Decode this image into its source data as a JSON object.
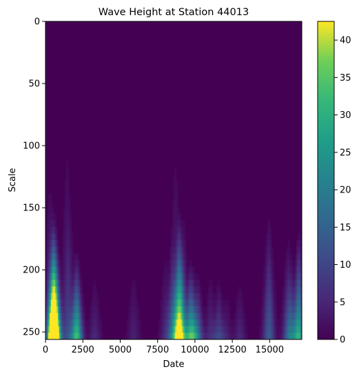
{
  "chart_data": {
    "type": "heatmap",
    "title": "Wave Height at Station 44013",
    "xlabel": "Date",
    "ylabel": "Scale",
    "colormap": "viridis",
    "xlim": [
      0,
      17150
    ],
    "ylim": [
      256,
      0
    ],
    "x_ticks": [
      0,
      2500,
      5000,
      7500,
      10000,
      12500,
      15000
    ],
    "x_tick_labels": [
      "0",
      "2500",
      "5000",
      "7500",
      "10000",
      "12500",
      "15000"
    ],
    "y_ticks": [
      0,
      50,
      100,
      150,
      200,
      250
    ],
    "y_tick_labels": [
      "0",
      "50",
      "100",
      "150",
      "200",
      "250"
    ],
    "colorbar": {
      "min": 0,
      "max": 42.5,
      "ticks": [
        0,
        5,
        10,
        15,
        20,
        25,
        30,
        35,
        40
      ],
      "tick_labels": [
        "0",
        "5",
        "10",
        "15",
        "20",
        "25",
        "30",
        "35",
        "40"
      ]
    },
    "background_value": 0.5,
    "streaks": [
      {
        "x": 300,
        "amp": 8,
        "top": 120
      },
      {
        "x": 480,
        "amp": 22,
        "top": 145
      },
      {
        "x": 560,
        "amp": 38,
        "top": 160
      },
      {
        "x": 650,
        "amp": 20,
        "top": 150
      },
      {
        "x": 800,
        "amp": 10,
        "top": 170
      },
      {
        "x": 1450,
        "amp": 6,
        "top": 90
      },
      {
        "x": 1600,
        "amp": 5,
        "top": 140
      },
      {
        "x": 2050,
        "amp": 18,
        "top": 180
      },
      {
        "x": 2150,
        "amp": 16,
        "top": 185
      },
      {
        "x": 3300,
        "amp": 5,
        "top": 200
      },
      {
        "x": 5900,
        "amp": 4,
        "top": 195
      },
      {
        "x": 8050,
        "amp": 5,
        "top": 180
      },
      {
        "x": 8500,
        "amp": 14,
        "top": 170
      },
      {
        "x": 8700,
        "amp": 6,
        "top": 95
      },
      {
        "x": 8950,
        "amp": 42,
        "top": 150
      },
      {
        "x": 9200,
        "amp": 12,
        "top": 150
      },
      {
        "x": 9700,
        "amp": 26,
        "top": 190
      },
      {
        "x": 9900,
        "amp": 10,
        "top": 190
      },
      {
        "x": 10200,
        "amp": 14,
        "top": 200
      },
      {
        "x": 11050,
        "amp": 6,
        "top": 200
      },
      {
        "x": 11600,
        "amp": 10,
        "top": 205
      },
      {
        "x": 12100,
        "amp": 4,
        "top": 215
      },
      {
        "x": 13000,
        "amp": 5,
        "top": 205
      },
      {
        "x": 14950,
        "amp": 14,
        "top": 150
      },
      {
        "x": 16250,
        "amp": 12,
        "top": 170
      },
      {
        "x": 16450,
        "amp": 10,
        "top": 185
      },
      {
        "x": 16950,
        "amp": 30,
        "top": 165
      }
    ]
  }
}
